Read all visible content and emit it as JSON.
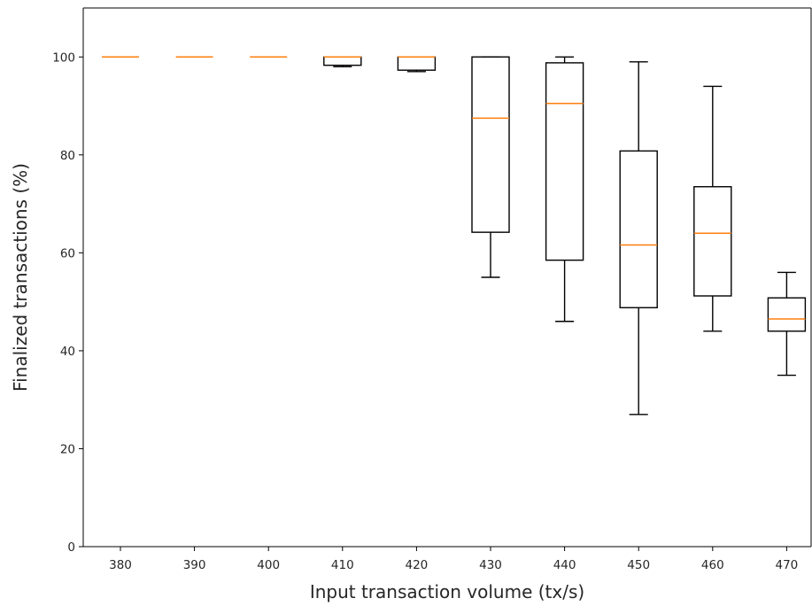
{
  "chart_data": {
    "type": "box",
    "title": "",
    "xlabel": "Input transaction volume (tx/s)",
    "ylabel": "Finalized transactions (%)",
    "ylim": [
      0,
      110
    ],
    "yticks": [
      0,
      20,
      40,
      60,
      80,
      100
    ],
    "grid": false,
    "categories": [
      "380",
      "390",
      "400",
      "410",
      "420",
      "430",
      "440",
      "450",
      "460",
      "470"
    ],
    "boxes": [
      {
        "category": "380",
        "min": 100,
        "q1": 100,
        "median": 100,
        "q3": 100,
        "max": 100
      },
      {
        "category": "390",
        "min": 100,
        "q1": 100,
        "median": 100,
        "q3": 100,
        "max": 100
      },
      {
        "category": "400",
        "min": 100,
        "q1": 100,
        "median": 100,
        "q3": 100,
        "max": 100
      },
      {
        "category": "410",
        "min": 98,
        "q1": 98.3,
        "median": 100,
        "q3": 100,
        "max": 100
      },
      {
        "category": "420",
        "min": 97,
        "q1": 97.3,
        "median": 100,
        "q3": 100,
        "max": 100
      },
      {
        "category": "430",
        "min": 55,
        "q1": 64.2,
        "median": 87.5,
        "q3": 100,
        "max": 100
      },
      {
        "category": "440",
        "min": 46,
        "q1": 58.5,
        "median": 90.5,
        "q3": 98.8,
        "max": 100
      },
      {
        "category": "450",
        "min": 27,
        "q1": 48.8,
        "median": 61.6,
        "q3": 80.8,
        "max": 99
      },
      {
        "category": "460",
        "min": 44,
        "q1": 51.2,
        "median": 64,
        "q3": 73.5,
        "max": 94
      },
      {
        "category": "470",
        "min": 35,
        "q1": 44,
        "median": 46.5,
        "q3": 50.8,
        "max": 56
      }
    ],
    "colors": {
      "box": "#000000",
      "median": "#ff7f0e",
      "axis": "#000000"
    }
  }
}
